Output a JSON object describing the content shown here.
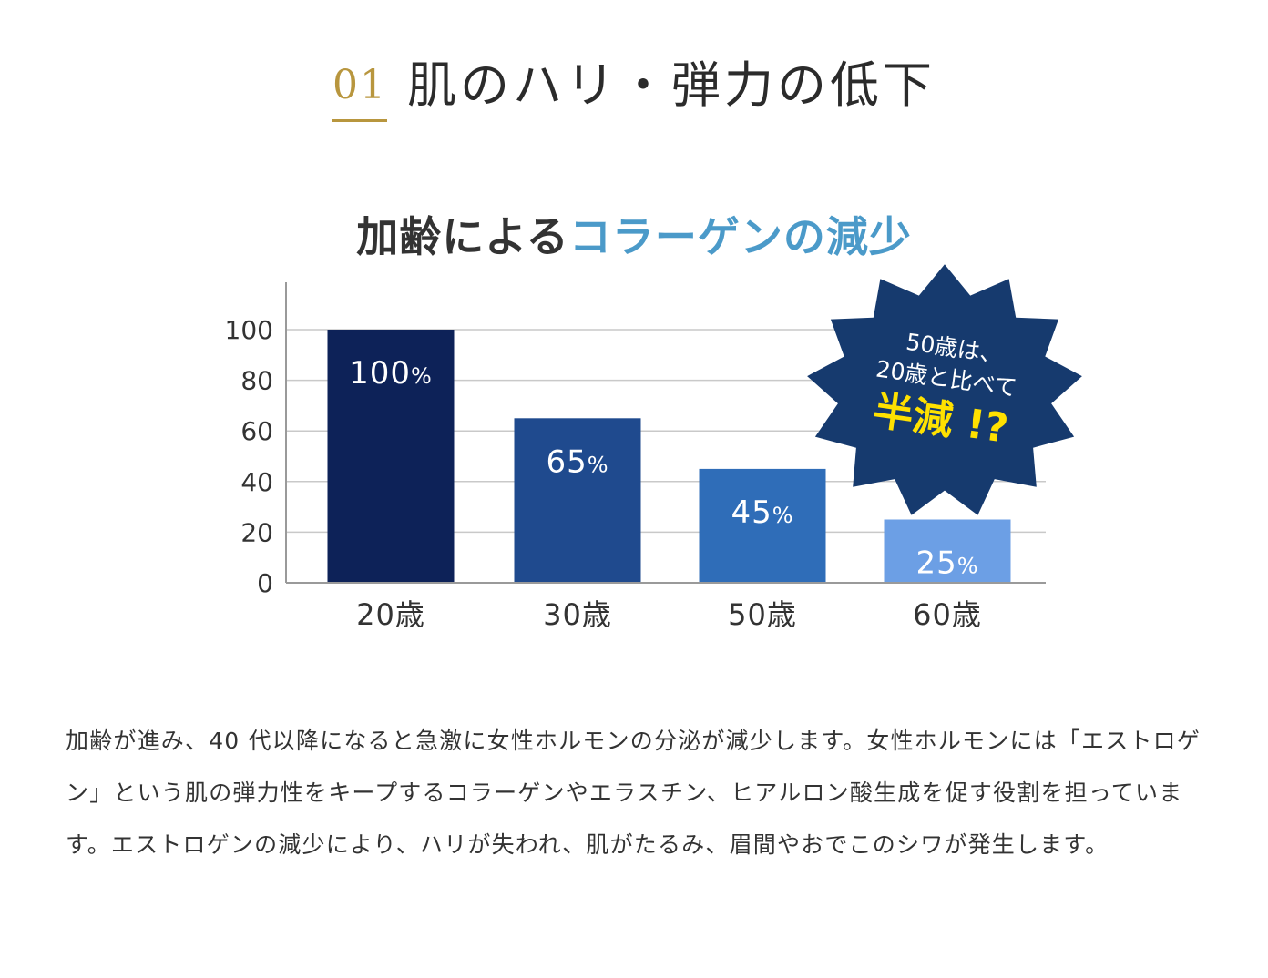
{
  "heading": {
    "number": "01",
    "title": "肌のハリ・弾力の低下"
  },
  "chart_title": {
    "part1": "加齢による",
    "part2": "コラーゲンの減少"
  },
  "colors": {
    "gold": "#b8963e",
    "title_blue": "#4b9ac9",
    "bar_20": "#0d2258",
    "bar_30": "#1f4a8e",
    "bar_50": "#2f6db8",
    "bar_60": "#6c9fe5",
    "burst": "#163a6e",
    "burst_highlight": "#ffe100"
  },
  "chart_data": {
    "type": "bar",
    "title": "加齢によるコラーゲンの減少",
    "categories": [
      "20歳",
      "30歳",
      "50歳",
      "60歳"
    ],
    "values": [
      100,
      65,
      45,
      25
    ],
    "value_labels": [
      "100%",
      "65%",
      "45%",
      "25%"
    ],
    "ylim": [
      0,
      100
    ],
    "yticks": [
      "0",
      "20",
      "40",
      "60",
      "80",
      "100"
    ],
    "grid": true,
    "xlabel": "",
    "ylabel": ""
  },
  "callout": {
    "line1": "50歳は、",
    "line2": "20歳と比べて",
    "line3": "半減 !?"
  },
  "body_text": "加齢が進み、40 代以降になると急激に女性ホルモンの分泌が減少します。女性ホルモンには「エストロゲン」という肌の弾力性をキープするコラーゲンやエラスチン、ヒアルロン酸生成を促す役割を担っています。エストロゲンの減少により、ハリが失われ、肌がたるみ、眉間やおでこのシワが発生します。"
}
